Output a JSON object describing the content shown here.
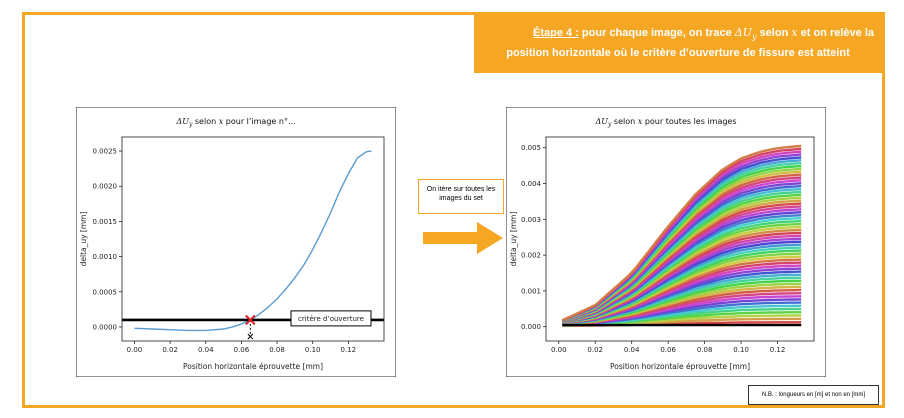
{
  "step": {
    "prefix": "Étape 4 :",
    "line1_a": " pour chaque image, on trace ",
    "delta_sym": "ΔU",
    "delta_sub": "y",
    "line1_b": " selon ",
    "var_x": "x",
    "line1_c": " et on relève la",
    "line2": "position horizontale où le critère d’ouverture de fissure est atteint"
  },
  "iterate_note": "On itère sur toutes les images du set",
  "nb_note": "N.B. : longueurs en [m] et non en [mm]",
  "colors": {
    "accent": "#f5a623",
    "curve": "#5a9bd4",
    "threshold": "#000000",
    "marker": "#e02020"
  },
  "chart_data": [
    {
      "type": "line",
      "title_prefix": "ΔU",
      "title_sub": "y",
      "title_mid": " selon ",
      "title_var": "x",
      "title_suffix": " pour l’image n°...",
      "xlabel": "Position horizontale éprouvette [mm]",
      "ylabel": "delta_uy [mm]",
      "xlim": [
        -0.007,
        0.14
      ],
      "ylim": [
        -0.0002,
        0.0027
      ],
      "xticks": [
        "0.00",
        "0.02",
        "0.04",
        "0.06",
        "0.08",
        "0.10",
        "0.12"
      ],
      "yticks": [
        "0.0000",
        "0.0005",
        "0.0010",
        "0.0015",
        "0.0020",
        "0.0025"
      ],
      "grid": false,
      "series": [
        {
          "x": [
            0.0,
            0.01,
            0.02,
            0.03,
            0.04,
            0.05,
            0.055,
            0.06,
            0.065,
            0.07,
            0.075,
            0.08,
            0.085,
            0.09,
            0.095,
            0.1,
            0.105,
            0.11,
            0.115,
            0.12,
            0.125,
            0.13,
            0.133
          ],
          "y": [
            -2e-05,
            -3e-05,
            -4e-05,
            -5e-05,
            -5e-05,
            -3e-05,
            0.0,
            4e-05,
            0.0001,
            0.00018,
            0.00028,
            0.0004,
            0.00054,
            0.0007,
            0.00088,
            0.0011,
            0.00135,
            0.00162,
            0.00192,
            0.00218,
            0.0024,
            0.00249,
            0.0025
          ]
        }
      ],
      "threshold": 0.0001,
      "threshold_label": "critère d’ouverture",
      "crossing_x": 0.065
    },
    {
      "type": "line",
      "title_prefix": "ΔU",
      "title_sub": "y",
      "title_mid": " selon ",
      "title_var": "x",
      "title_suffix": " pour toutes les images",
      "xlabel": "Position horizontale éprouvette [mm]",
      "ylabel": "delta_uy [mm]",
      "xlim": [
        -0.007,
        0.14
      ],
      "ylim": [
        -0.0004,
        0.0053
      ],
      "xticks": [
        "0.00",
        "0.02",
        "0.04",
        "0.06",
        "0.08",
        "0.10",
        "0.12"
      ],
      "yticks": [
        "0.000",
        "0.001",
        "0.002",
        "0.003",
        "0.004",
        "0.005"
      ],
      "grid": false,
      "family": {
        "count": 60,
        "x_start": 0.002,
        "x_end": 0.133,
        "max_final": 0.00505,
        "max_start": 0.00018,
        "shape_x": [
          0.002,
          0.02,
          0.04,
          0.06,
          0.075,
          0.09,
          0.1,
          0.11,
          0.12,
          0.133
        ],
        "shape_y": [
          0.00018,
          0.0006,
          0.0015,
          0.0028,
          0.0037,
          0.0044,
          0.0047,
          0.00488,
          0.00499,
          0.00505
        ]
      },
      "threshold": 0.0001
    }
  ]
}
